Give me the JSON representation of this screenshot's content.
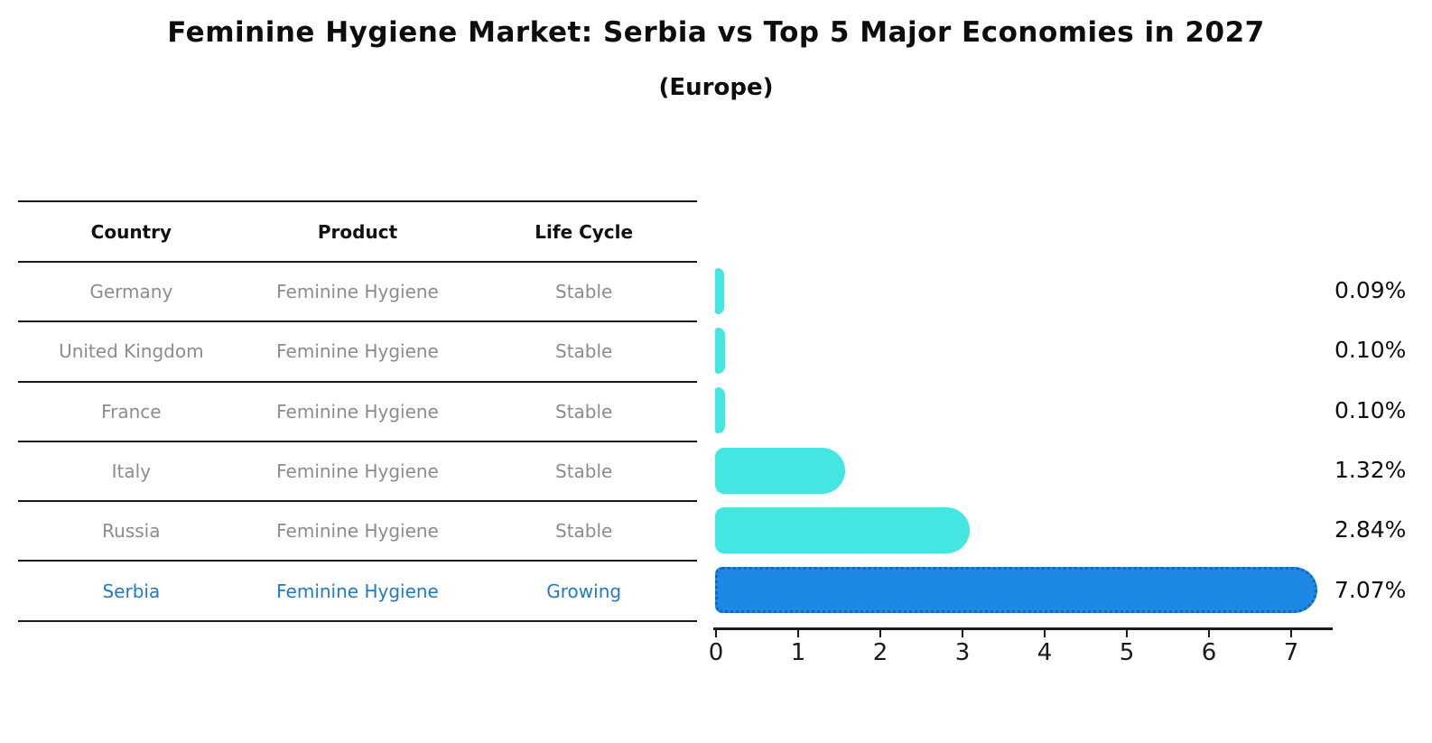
{
  "chart_data": {
    "type": "bar",
    "orientation": "horizontal",
    "title": "Feminine Hygiene Market: Serbia vs Top 5 Major Economies in 2027",
    "subtitle": "(Europe)",
    "categories": [
      "Germany",
      "United Kingdom",
      "France",
      "Italy",
      "Russia",
      "Serbia"
    ],
    "values": [
      0.09,
      0.1,
      0.1,
      1.32,
      2.84,
      7.07
    ],
    "value_labels": [
      "0.09%",
      "0.10%",
      "0.10%",
      "1.32%",
      "2.84%",
      "7.07%"
    ],
    "highlight_index": 5,
    "x_ticks": [
      "0",
      "1",
      "2",
      "3",
      "4",
      "5",
      "6",
      "7"
    ],
    "xlim": [
      0,
      7.5
    ],
    "grid": false,
    "legend": "none",
    "colors": {
      "bar": "#43e6e1",
      "highlight_bar": "#1e88e5",
      "highlight_edge": "#1565c0",
      "axis": "#1a1a1a",
      "value_text": "#0d0d0d"
    }
  },
  "table": {
    "columns": [
      "Country",
      "Product",
      "Life Cycle"
    ],
    "rows": [
      {
        "country": "Germany",
        "product": "Feminine Hygiene",
        "life_cycle": "Stable",
        "highlight": false
      },
      {
        "country": "United Kingdom",
        "product": "Feminine Hygiene",
        "life_cycle": "Stable",
        "highlight": false
      },
      {
        "country": "France",
        "product": "Feminine Hygiene",
        "life_cycle": "Stable",
        "highlight": false
      },
      {
        "country": "Italy",
        "product": "Feminine Hygiene",
        "life_cycle": "Stable",
        "highlight": false
      },
      {
        "country": "Russia",
        "product": "Feminine Hygiene",
        "life_cycle": "Stable",
        "highlight": false
      },
      {
        "country": "Serbia",
        "product": "Feminine Hygiene",
        "life_cycle": "Growing",
        "highlight": true
      }
    ],
    "colors": {
      "row_text": "#8c8c8c",
      "header_text": "#111111",
      "highlight_text": "#2079cc",
      "line": "#1a1a1a"
    }
  }
}
